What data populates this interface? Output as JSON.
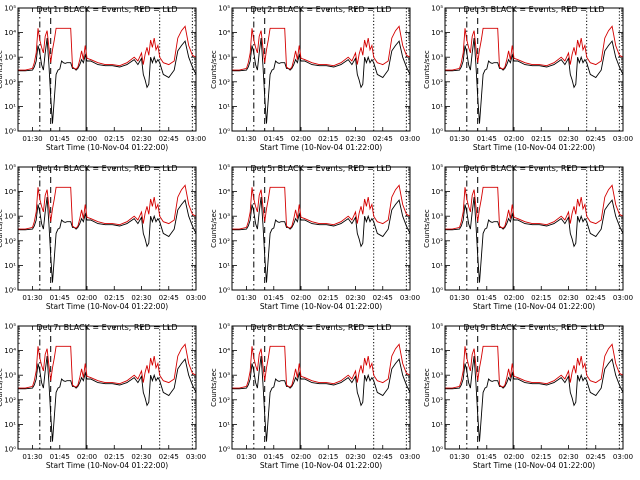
{
  "colors": {
    "events": "#000000",
    "lld": "#d40000",
    "axes": "#000000",
    "background": "#ffffff"
  },
  "panels": [
    {
      "title": "Det 1: BLACK = Events, RED = LLD"
    },
    {
      "title": "Det 2: BLACK = Events, RED = LLD"
    },
    {
      "title": "Det 3: BLACK = Events, RED = LLD"
    },
    {
      "title": "Det 4: BLACK = Events, RED = LLD"
    },
    {
      "title": "Det 5: BLACK = Events, RED = LLD"
    },
    {
      "title": "Det 6: BLACK = Events, RED = LLD"
    },
    {
      "title": "Det 7: BLACK = Events, RED = LLD"
    },
    {
      "title": "Det 8: BLACK = Events, RED = LLD"
    },
    {
      "title": "Det 9: BLACK = Events, RED = LLD"
    }
  ],
  "chart_data": {
    "type": "line",
    "layout": "3x3 grid",
    "xlabel": "Start Time (10-Nov-04 01:22:00)",
    "ylabel": "Counts/sec",
    "x_ticks": [
      "01:30",
      "01:45",
      "02:00",
      "02:15",
      "02:30",
      "02:45",
      "03:00"
    ],
    "x_tick_minutes": [
      8,
      23,
      38,
      53,
      68,
      83,
      98
    ],
    "xlim_minutes_after_start": [
      0,
      98
    ],
    "y_scale": "log",
    "ylim": [
      1,
      100000
    ],
    "y_ticks": [
      "10⁰",
      "10¹",
      "10²",
      "10³",
      "10⁴",
      "10⁵"
    ],
    "markers": [
      {
        "style": "dash-dot",
        "minute": 12
      },
      {
        "style": "dashed",
        "minute": 18
      },
      {
        "style": "solid",
        "minute": 37.5
      },
      {
        "style": "dotted",
        "minute": 78
      },
      {
        "style": "dotted",
        "minute": 96
      }
    ],
    "series": [
      {
        "name": "Events",
        "color": "#000000",
        "x": [
          0,
          4,
          8,
          9,
          10,
          11,
          12,
          13,
          14,
          15,
          16,
          17,
          18,
          19,
          20,
          21,
          22,
          23,
          24,
          25,
          26,
          27,
          28,
          29,
          30,
          31,
          32,
          33,
          34,
          35,
          36,
          37,
          38,
          40,
          44,
          48,
          52,
          56,
          60,
          64,
          66,
          68,
          69,
          70,
          71,
          72,
          73,
          74,
          75,
          76,
          77,
          78,
          80,
          83,
          86,
          88,
          90,
          92,
          94,
          96,
          98
        ],
        "y": [
          280,
          280,
          300,
          400,
          700,
          3000,
          1500,
          500,
          300,
          1500,
          6000,
          500,
          25,
          2,
          20,
          200,
          300,
          330,
          700,
          600,
          560,
          600,
          600,
          600,
          350,
          350,
          300,
          350,
          500,
          800,
          600,
          1200,
          700,
          700,
          500,
          450,
          450,
          400,
          500,
          800,
          500,
          900,
          200,
          120,
          60,
          80,
          1000,
          600,
          1000,
          600,
          800,
          600,
          200,
          150,
          300,
          1800,
          3000,
          4500,
          1000,
          400,
          200
        ]
      },
      {
        "name": "LLD",
        "color": "#d40000",
        "x": [
          0,
          4,
          8,
          9,
          10,
          11,
          12,
          13,
          14,
          15,
          16,
          17,
          18,
          19,
          20,
          21,
          22,
          23,
          24,
          25,
          26,
          27,
          28,
          29,
          30,
          31,
          32,
          33,
          34,
          35,
          36,
          37,
          38,
          40,
          44,
          48,
          52,
          56,
          60,
          64,
          66,
          68,
          69,
          70,
          71,
          72,
          73,
          74,
          75,
          76,
          77,
          78,
          80,
          83,
          86,
          88,
          90,
          92,
          94,
          96,
          98
        ],
        "y": [
          300,
          300,
          350,
          600,
          1500,
          15000,
          5000,
          2500,
          1500,
          7000,
          12000,
          2500,
          600,
          2000,
          5000,
          15000,
          15000,
          15000,
          15000,
          15000,
          15000,
          15000,
          15000,
          15000,
          400,
          350,
          330,
          400,
          800,
          1800,
          800,
          3000,
          900,
          800,
          600,
          500,
          500,
          450,
          600,
          1000,
          700,
          1500,
          500,
          1300,
          2500,
          1200,
          5000,
          2500,
          6000,
          2000,
          3000,
          1000,
          600,
          500,
          700,
          6000,
          12000,
          18000,
          3000,
          1200,
          1000
        ]
      }
    ]
  }
}
